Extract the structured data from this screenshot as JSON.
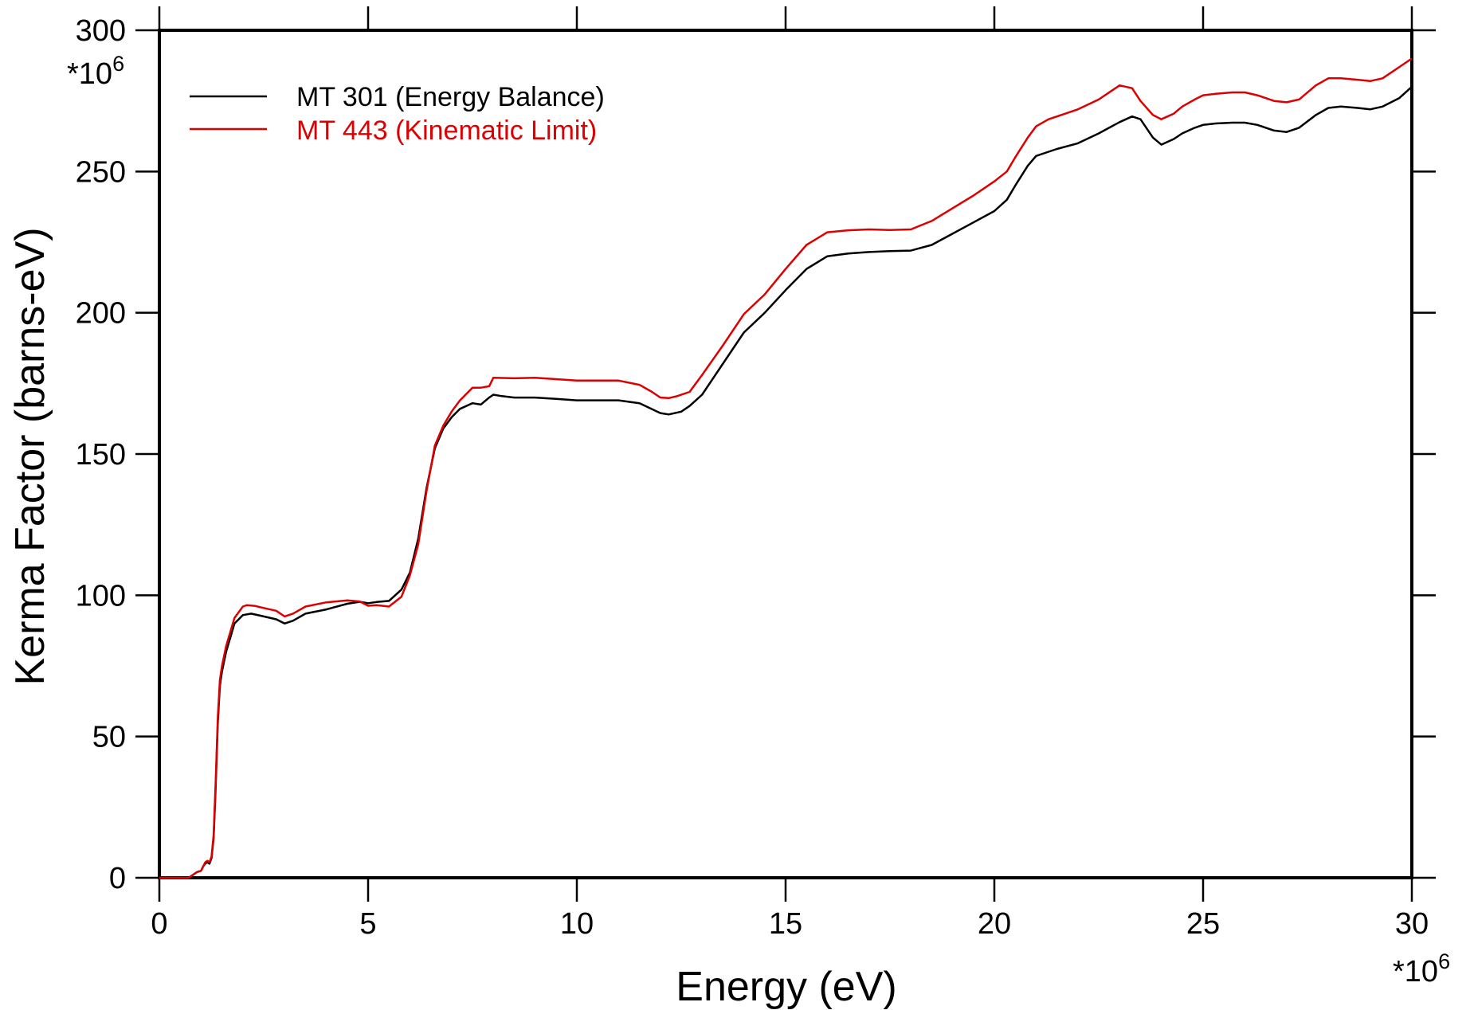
{
  "chart_data": {
    "type": "line",
    "title": "",
    "xlabel": "Energy (eV)",
    "ylabel": "Kerma Factor (barns-eV)",
    "x_multiplier": "*10",
    "x_multiplier_exp": "6",
    "y_multiplier": "*10",
    "y_multiplier_exp": "6",
    "xlim": [
      0,
      30
    ],
    "ylim": [
      0,
      300
    ],
    "x_ticks": [
      0,
      5,
      10,
      15,
      20,
      25,
      30
    ],
    "y_ticks": [
      0,
      50,
      100,
      150,
      200,
      250,
      300
    ],
    "x_tick_labels": [
      "0",
      "5",
      "10",
      "15",
      "20",
      "25",
      "30"
    ],
    "y_tick_labels": [
      "0",
      "50",
      "100",
      "150",
      "200",
      "250",
      "300"
    ],
    "grid": false,
    "legend_position": "top-left",
    "series": [
      {
        "name": "MT 301 (Energy Balance)",
        "color": "#000000",
        "x": [
          0,
          0.7,
          0.8,
          0.9,
          1.0,
          1.05,
          1.1,
          1.15,
          1.2,
          1.25,
          1.3,
          1.35,
          1.4,
          1.45,
          1.5,
          1.6,
          1.8,
          2.0,
          2.2,
          2.5,
          2.8,
          3.0,
          3.2,
          3.5,
          4.0,
          4.5,
          4.8,
          5.0,
          5.2,
          5.5,
          5.8,
          6.0,
          6.2,
          6.4,
          6.6,
          6.8,
          7.0,
          7.2,
          7.5,
          7.7,
          7.9,
          8.0,
          8.2,
          8.5,
          9.0,
          9.5,
          10.0,
          10.5,
          11.0,
          11.5,
          12.0,
          12.2,
          12.5,
          12.7,
          13.0,
          13.5,
          14.0,
          14.5,
          15.0,
          15.5,
          16.0,
          16.5,
          17.0,
          17.5,
          18.0,
          18.5,
          19.0,
          19.5,
          20.0,
          20.3,
          20.5,
          20.8,
          21.0,
          21.3,
          21.5,
          22.0,
          22.5,
          23.0,
          23.3,
          23.5,
          23.8,
          24.0,
          24.3,
          24.5,
          24.8,
          25.0,
          25.3,
          25.7,
          26.0,
          26.3,
          26.7,
          27.0,
          27.3,
          27.7,
          28.0,
          28.3,
          28.7,
          29.0,
          29.3,
          29.7,
          30.0
        ],
        "y": [
          0,
          0,
          1,
          2,
          2.5,
          4,
          5,
          5.5,
          5,
          7,
          14,
          32,
          55,
          68,
          73,
          80,
          90,
          93,
          93.5,
          92.5,
          91.5,
          90,
          91,
          93.5,
          95,
          97,
          97.7,
          97.2,
          97.6,
          98,
          102,
          108,
          120,
          138,
          152,
          159,
          163,
          166,
          168,
          167.5,
          170,
          171,
          170.5,
          170,
          170,
          169.5,
          169,
          169,
          169,
          168,
          164.5,
          164,
          165,
          167,
          171,
          182,
          193,
          200,
          208,
          215.5,
          220,
          221,
          221.5,
          221.8,
          222,
          224,
          228,
          232,
          236,
          240,
          245,
          252,
          255.5,
          257,
          258,
          260,
          263.5,
          267.5,
          269.5,
          268.5,
          262,
          259.5,
          261.5,
          263.5,
          265.5,
          266.5,
          267,
          267.3,
          267.3,
          266.5,
          264.5,
          264,
          265.5,
          270,
          272.5,
          273,
          272.5,
          272,
          273,
          276,
          280
        ]
      },
      {
        "name": "MT 443 (Kinematic Limit)",
        "color": "#dd0000",
        "x": [
          0,
          0.7,
          0.8,
          0.9,
          1.0,
          1.05,
          1.1,
          1.15,
          1.2,
          1.25,
          1.3,
          1.35,
          1.4,
          1.45,
          1.5,
          1.6,
          1.8,
          2.0,
          2.1,
          2.3,
          2.5,
          2.8,
          3.0,
          3.2,
          3.5,
          4.0,
          4.5,
          4.8,
          5.0,
          5.2,
          5.5,
          5.8,
          6.0,
          6.2,
          6.4,
          6.6,
          6.8,
          7.0,
          7.2,
          7.4,
          7.5,
          7.7,
          7.9,
          8.0,
          8.5,
          9.0,
          9.5,
          10.0,
          10.5,
          11.0,
          11.5,
          11.8,
          12.0,
          12.2,
          12.4,
          12.7,
          13.0,
          13.5,
          14.0,
          14.5,
          15.0,
          15.5,
          16.0,
          16.5,
          17.0,
          17.5,
          18.0,
          18.5,
          19.0,
          19.5,
          20.0,
          20.3,
          20.5,
          20.8,
          21.0,
          21.3,
          21.5,
          22.0,
          22.5,
          23.0,
          23.3,
          23.5,
          23.8,
          24.0,
          24.3,
          24.5,
          24.8,
          25.0,
          25.3,
          25.7,
          26.0,
          26.3,
          26.7,
          27.0,
          27.3,
          27.7,
          28.0,
          28.3,
          28.7,
          29.0,
          29.3,
          29.7,
          30.0
        ],
        "y": [
          0,
          0,
          1,
          2,
          2.5,
          4,
          5.5,
          6,
          5.5,
          7.5,
          15,
          34,
          57,
          70,
          75,
          82,
          92,
          96,
          96.5,
          96.2,
          95.5,
          94.5,
          92.5,
          93.5,
          96,
          97.5,
          98.2,
          97.8,
          96.3,
          96.5,
          96,
          99.5,
          107,
          118,
          137,
          153,
          160,
          165,
          169,
          172,
          173.5,
          173.5,
          174,
          177,
          176.8,
          177,
          176.5,
          176,
          176,
          176,
          174.5,
          172,
          170,
          169.8,
          170.5,
          172,
          178,
          188.5,
          199.5,
          206.5,
          215.5,
          224,
          228.5,
          229.2,
          229.5,
          229.3,
          229.5,
          232.5,
          237,
          241.5,
          246.5,
          250,
          255,
          262,
          266,
          268.5,
          269.5,
          272,
          275.5,
          280.5,
          279.5,
          275,
          270,
          268.5,
          270.5,
          273,
          275.5,
          277,
          277.5,
          278,
          278,
          277,
          275,
          274.5,
          275.5,
          280.5,
          283,
          283,
          282.5,
          282,
          283,
          287,
          290
        ]
      }
    ]
  }
}
